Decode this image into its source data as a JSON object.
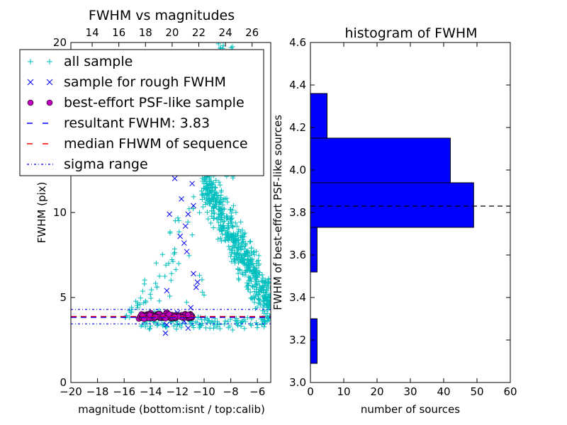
{
  "chart_data": [
    {
      "type": "scatter",
      "title": "FWHM vs magnitudes",
      "xlabel": "magnitude (bottom:isnt / top:calib)",
      "ylabel": "FWHM (pix)",
      "xlim": [
        -20,
        -5
      ],
      "ylim": [
        0,
        20
      ],
      "top_xlim": [
        12.4,
        27.4
      ],
      "xticks": [
        -20,
        -18,
        -16,
        -14,
        -12,
        -10,
        -8,
        -6
      ],
      "xtick_labels": [
        "−20",
        "−18",
        "−16",
        "−14",
        "−12",
        "−10",
        "−8",
        "−6"
      ],
      "top_xticks": [
        14,
        16,
        18,
        20,
        22,
        24,
        26
      ],
      "yticks": [
        0,
        5,
        10,
        20
      ],
      "ytick_labels": [
        "0",
        "5",
        "10",
        "20"
      ],
      "grid": false,
      "legend_position": "top-left",
      "colors": {
        "all": "#00bfbf",
        "rough": "#0000ff",
        "best": "#bf00bf",
        "resultant": "#0000ff",
        "median": "#ff0000",
        "sigma": "#0000ff"
      },
      "series": [
        {
          "name": "all sample",
          "marker": "+",
          "description_count": 900
        },
        {
          "name": "sample for rough FWHM",
          "marker": "x",
          "points": [
            [
              -12.9,
              12.6
            ],
            [
              -12.2,
              12.0
            ],
            [
              -12.6,
              9.9
            ],
            [
              -11.7,
              10.8
            ],
            [
              -11.4,
              9.2
            ],
            [
              -11.3,
              7.7
            ],
            [
              -11.2,
              9.9
            ],
            [
              -11.8,
              8.6
            ],
            [
              -11.5,
              8.2
            ],
            [
              -11.1,
              12.3
            ],
            [
              -10.9,
              11.7
            ],
            [
              -10.8,
              10.4
            ],
            [
              -10.8,
              6.4
            ],
            [
              -10.5,
              5.9
            ],
            [
              -10.6,
              5.6
            ],
            [
              -11.0,
              4.4
            ],
            [
              -12.8,
              5.4
            ],
            [
              -12.9,
              2.9
            ],
            [
              -12.8,
              3.4
            ],
            [
              -12.4,
              3.9
            ],
            [
              -11.2,
              3.2
            ],
            [
              -12.0,
              4.1
            ],
            [
              -11.5,
              3.6
            ]
          ]
        },
        {
          "name": "best-effort PSF-like sample",
          "marker": "o",
          "x_range": [
            -14.9,
            -10.9
          ],
          "y_range": [
            3.55,
            4.35
          ]
        }
      ],
      "lines": [
        {
          "name": "resultant FWHM: 3.83",
          "y": 3.83,
          "style": "dashed"
        },
        {
          "name": "median FHWM of sequence",
          "y": 3.88,
          "style": "dashed"
        },
        {
          "name": "sigma range",
          "y": [
            3.45,
            4.3
          ],
          "style": "dashdot"
        }
      ]
    },
    {
      "type": "bar",
      "orientation": "horizontal",
      "title": "histogram of FWHM",
      "xlabel": "number of sources",
      "ylabel": "FWHM of best-effort PSF-like sources",
      "xlim": [
        0,
        60
      ],
      "ylim": [
        3.0,
        4.6
      ],
      "xticks": [
        0,
        10,
        20,
        30,
        40,
        50,
        60
      ],
      "yticks": [
        "3.0",
        "3.2",
        "3.4",
        "3.6",
        "3.8",
        "4.0",
        "4.2",
        "4.4",
        "4.6"
      ],
      "bins": [
        {
          "y0": 3.09,
          "y1": 3.3,
          "count": 2
        },
        {
          "y0": 3.52,
          "y1": 3.73,
          "count": 2
        },
        {
          "y0": 3.73,
          "y1": 3.94,
          "count": 49
        },
        {
          "y0": 3.94,
          "y1": 4.15,
          "count": 42
        },
        {
          "y0": 4.15,
          "y1": 4.36,
          "count": 5
        }
      ],
      "reference_line": {
        "y": 3.83,
        "style": "dashed",
        "color": "#000000"
      },
      "bar_color": "#0000ff"
    }
  ]
}
